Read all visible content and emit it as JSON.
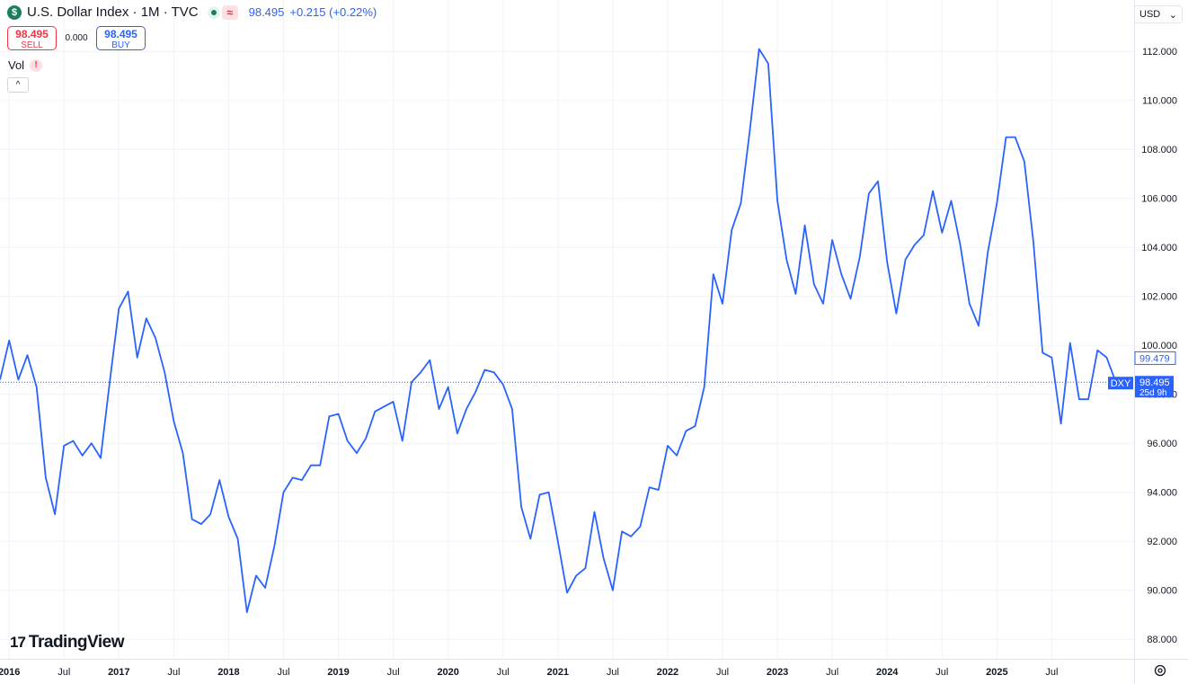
{
  "header": {
    "logo_glyph": "$",
    "title": "U.S. Dollar Index · 1M · TVC",
    "wave_glyph": "≈",
    "last_price": "98.495",
    "change": "+0.215 (+0.22%)"
  },
  "trade": {
    "sell_price": "98.495",
    "sell_label": "SELL",
    "spread": "0.000",
    "buy_price": "98.495",
    "buy_label": "BUY"
  },
  "indicator": {
    "name": "Vol",
    "warning_glyph": "!"
  },
  "collapse_glyph": "^",
  "currency": {
    "selected": "USD",
    "chevron": "⌄"
  },
  "brand": {
    "mark": "17",
    "name": "TradingView"
  },
  "colors": {
    "line": "#2962ff",
    "grid": "#f0f3fa",
    "current_label_bg": "#2962ff",
    "sell": "#f23645",
    "buy": "#2962ff"
  },
  "chart_data": {
    "type": "line",
    "symbol": "DXY",
    "interval": "1M",
    "x_tick_labels": [
      "2016",
      "Jul",
      "2017",
      "Jul",
      "2018",
      "Jul",
      "2019",
      "Jul",
      "2020",
      "Jul",
      "2021",
      "Jul",
      "2022",
      "Jul",
      "2023",
      "Jul",
      "2024",
      "Jul",
      "2025",
      "Jul"
    ],
    "x_tick_months": [
      0,
      6,
      12,
      18,
      24,
      30,
      36,
      42,
      48,
      54,
      60,
      66,
      72,
      78,
      84,
      90,
      96,
      102,
      108,
      114
    ],
    "x_range_months": [
      -1,
      123
    ],
    "y_ticks": [
      88,
      90,
      92,
      94,
      96,
      98,
      100,
      102,
      104,
      106,
      108,
      110,
      112
    ],
    "y_tick_labels": [
      "88.000",
      "90.000",
      "92.000",
      "94.000",
      "96.000",
      "98.000",
      "100.000",
      "102.000",
      "104.000",
      "106.000",
      "108.000",
      "110.000",
      "112.000"
    ],
    "ylim": [
      87.2,
      114.1
    ],
    "grid": true,
    "series": [
      {
        "x_start_month": -1,
        "values": [
          98.6,
          100.2,
          98.6,
          99.6,
          98.3,
          94.6,
          93.1,
          95.9,
          96.1,
          95.5,
          96.0,
          95.4,
          98.5,
          101.5,
          102.2,
          99.5,
          101.1,
          100.3,
          98.9,
          96.9,
          95.6,
          92.9,
          92.7,
          93.1,
          94.5,
          93.0,
          92.1,
          89.1,
          90.6,
          90.1,
          91.8,
          94.0,
          94.6,
          94.5,
          95.1,
          95.1,
          97.1,
          97.2,
          96.1,
          95.6,
          96.2,
          97.3,
          97.5,
          97.7,
          96.1,
          98.5,
          98.9,
          99.4,
          97.4,
          98.3,
          96.4,
          97.4,
          98.1,
          99.0,
          98.9,
          98.4,
          97.4,
          93.4,
          92.1,
          93.9,
          94.0,
          92.0,
          89.9,
          90.6,
          90.9,
          93.2,
          91.3,
          90.0,
          92.4,
          92.2,
          92.6,
          94.2,
          94.1,
          95.9,
          95.5,
          96.5,
          96.7,
          98.3,
          102.9,
          101.7,
          104.7,
          105.8,
          108.8,
          112.1,
          111.5,
          105.9,
          103.5,
          102.1,
          104.9,
          102.5,
          101.7,
          104.3,
          102.9,
          101.9,
          103.6,
          106.2,
          106.7,
          103.4,
          101.3,
          103.5,
          104.1,
          104.5,
          106.3,
          104.6,
          105.9,
          104.1,
          101.7,
          100.8,
          103.8,
          105.8,
          108.5,
          108.5,
          107.5,
          104.2,
          99.7,
          99.5,
          96.8,
          100.1,
          97.8,
          97.8,
          99.8,
          99.5,
          98.5
        ]
      }
    ],
    "reference_line": 98.495,
    "price_labels": [
      {
        "value": 99.479,
        "text": "99.479"
      },
      {
        "value": 98.495,
        "text": "98.495",
        "tag": "DXY",
        "sub": "25d 9h"
      }
    ]
  }
}
